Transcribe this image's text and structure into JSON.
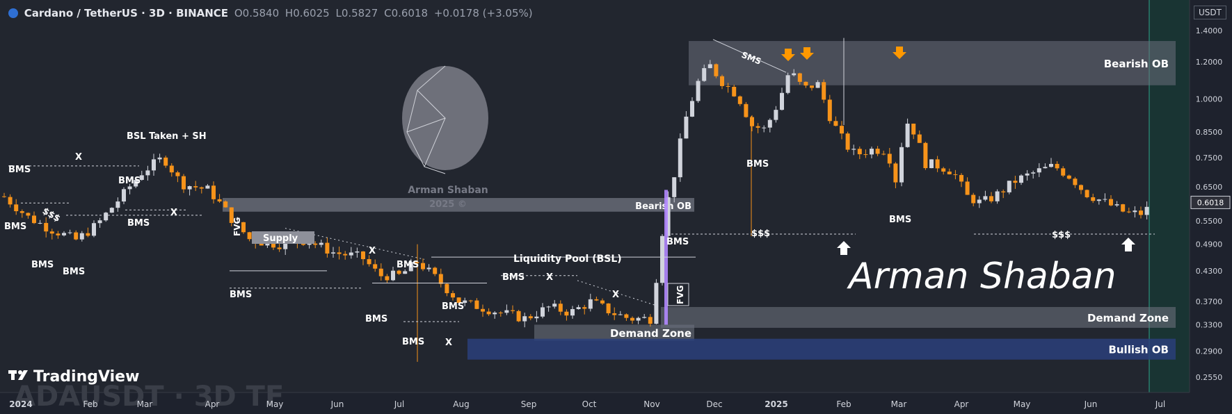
{
  "header": {
    "symbol": "Cardano / TetherUS · 3D · BINANCE",
    "open": "O0.5840",
    "high": "H0.6025",
    "low": "L0.5827",
    "close": "C0.6018",
    "change": "+0.0178 (+3.05%)"
  },
  "currency": "USDT",
  "brand": "TradingView",
  "watermark_bottom": "ADAUSDT · 3D TF",
  "logo": {
    "name": "Arman Shaban",
    "year": "2025 ©"
  },
  "signature": "Arman Shaban",
  "colors": {
    "bg": "#22262f",
    "bull": "#d1d4dc",
    "bear": "#f7931a",
    "zone": "#5d6170",
    "bullish_ob": "#2a3f7a",
    "accent": "#ff9800"
  },
  "chart_data": {
    "type": "candlestick",
    "price_axis": {
      "ticks": [
        1.4,
        1.2,
        1.0,
        0.85,
        0.75,
        0.65,
        0.6018,
        0.55,
        0.49,
        0.43,
        0.37,
        0.33,
        0.29,
        0.255
      ],
      "current": 0.6018,
      "scale": "log"
    },
    "time_axis": [
      "2024",
      "Feb",
      "Mar",
      "Apr",
      "May",
      "Jun",
      "Jul",
      "Aug",
      "Sep",
      "Oct",
      "Nov",
      "Dec",
      "2025",
      "Feb",
      "Mar",
      "Apr",
      "May",
      "Jun",
      "Jul"
    ],
    "labels": {
      "bms": "BMS",
      "x": "X",
      "sss": "$$$",
      "fvg": "FVG",
      "sms": "SMS",
      "bsl_taken": "BSL Taken + SH",
      "supply": "Supply",
      "liquidity_pool": "Liquidity Pool (BSL)"
    },
    "zones": [
      {
        "label": "Bearish OB",
        "from": 1.07,
        "to": 1.33
      },
      {
        "label": "Bearish OB",
        "from": 0.575,
        "to": 0.615
      },
      {
        "label": "Demand Zone",
        "from": 0.325,
        "to": 0.36
      },
      {
        "label": "Demand Zone",
        "from": 0.305,
        "to": 0.33
      },
      {
        "label": "Bullish OB",
        "from": 0.278,
        "to": 0.308
      }
    ]
  }
}
